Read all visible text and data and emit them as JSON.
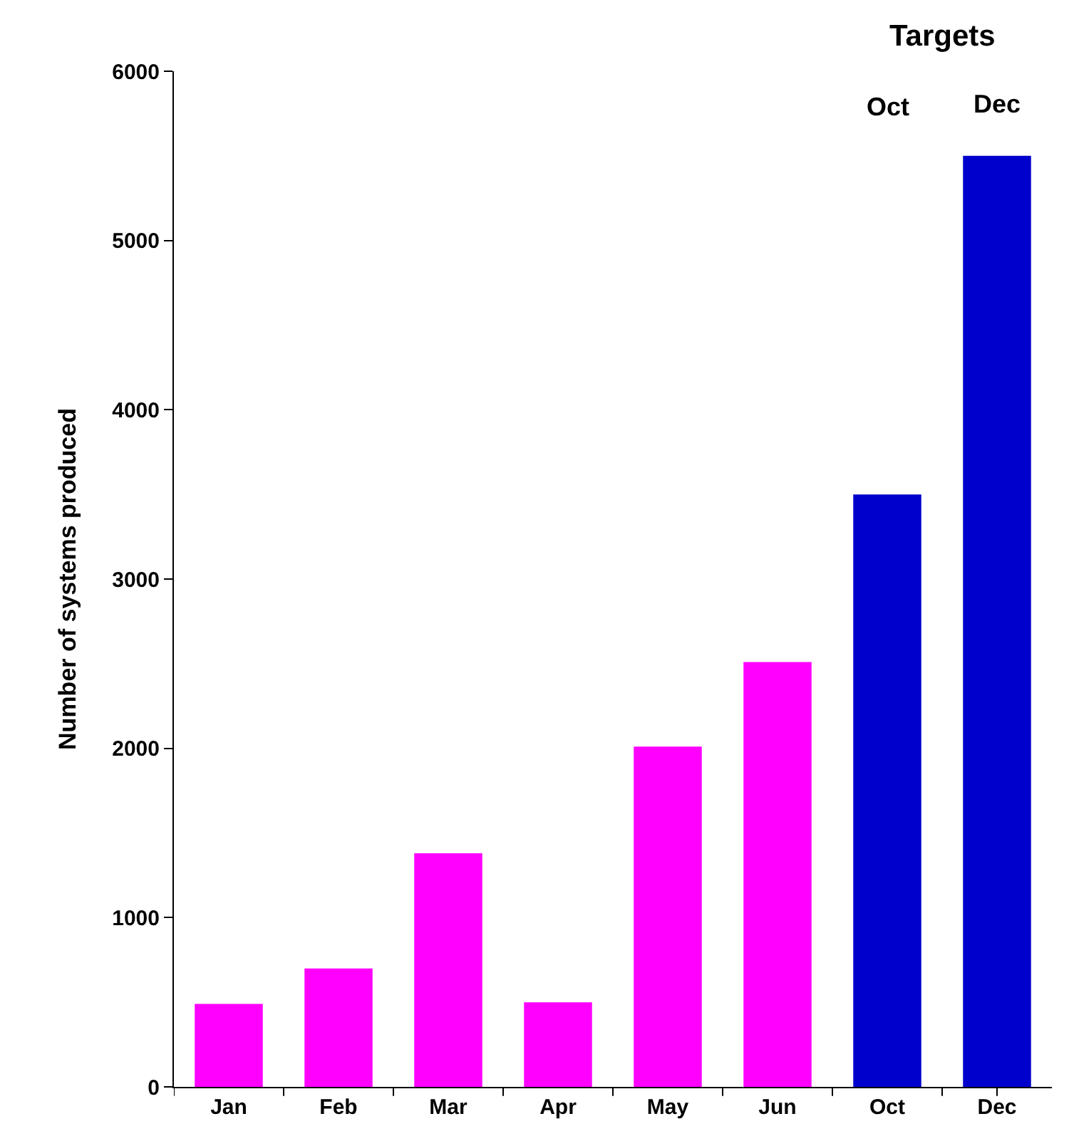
{
  "chart_data": {
    "type": "bar",
    "ylabel": "Number of systems produced",
    "categories": [
      "Jan",
      "Feb",
      "Mar",
      "Apr",
      "May",
      "Jun",
      "Oct",
      "Dec"
    ],
    "values": [
      490,
      700,
      1380,
      500,
      2010,
      2510,
      3500,
      5500
    ],
    "colors": [
      "#ff00ff",
      "#ff00ff",
      "#ff00ff",
      "#ff00ff",
      "#ff00ff",
      "#ff00ff",
      "#0000cc",
      "#0000cc"
    ],
    "ylim": [
      0,
      6000
    ],
    "yticks": [
      0,
      1000,
      2000,
      3000,
      4000,
      5000,
      6000
    ],
    "grid": false,
    "annotations": [
      "Targets",
      "Oct",
      "Dec"
    ]
  }
}
